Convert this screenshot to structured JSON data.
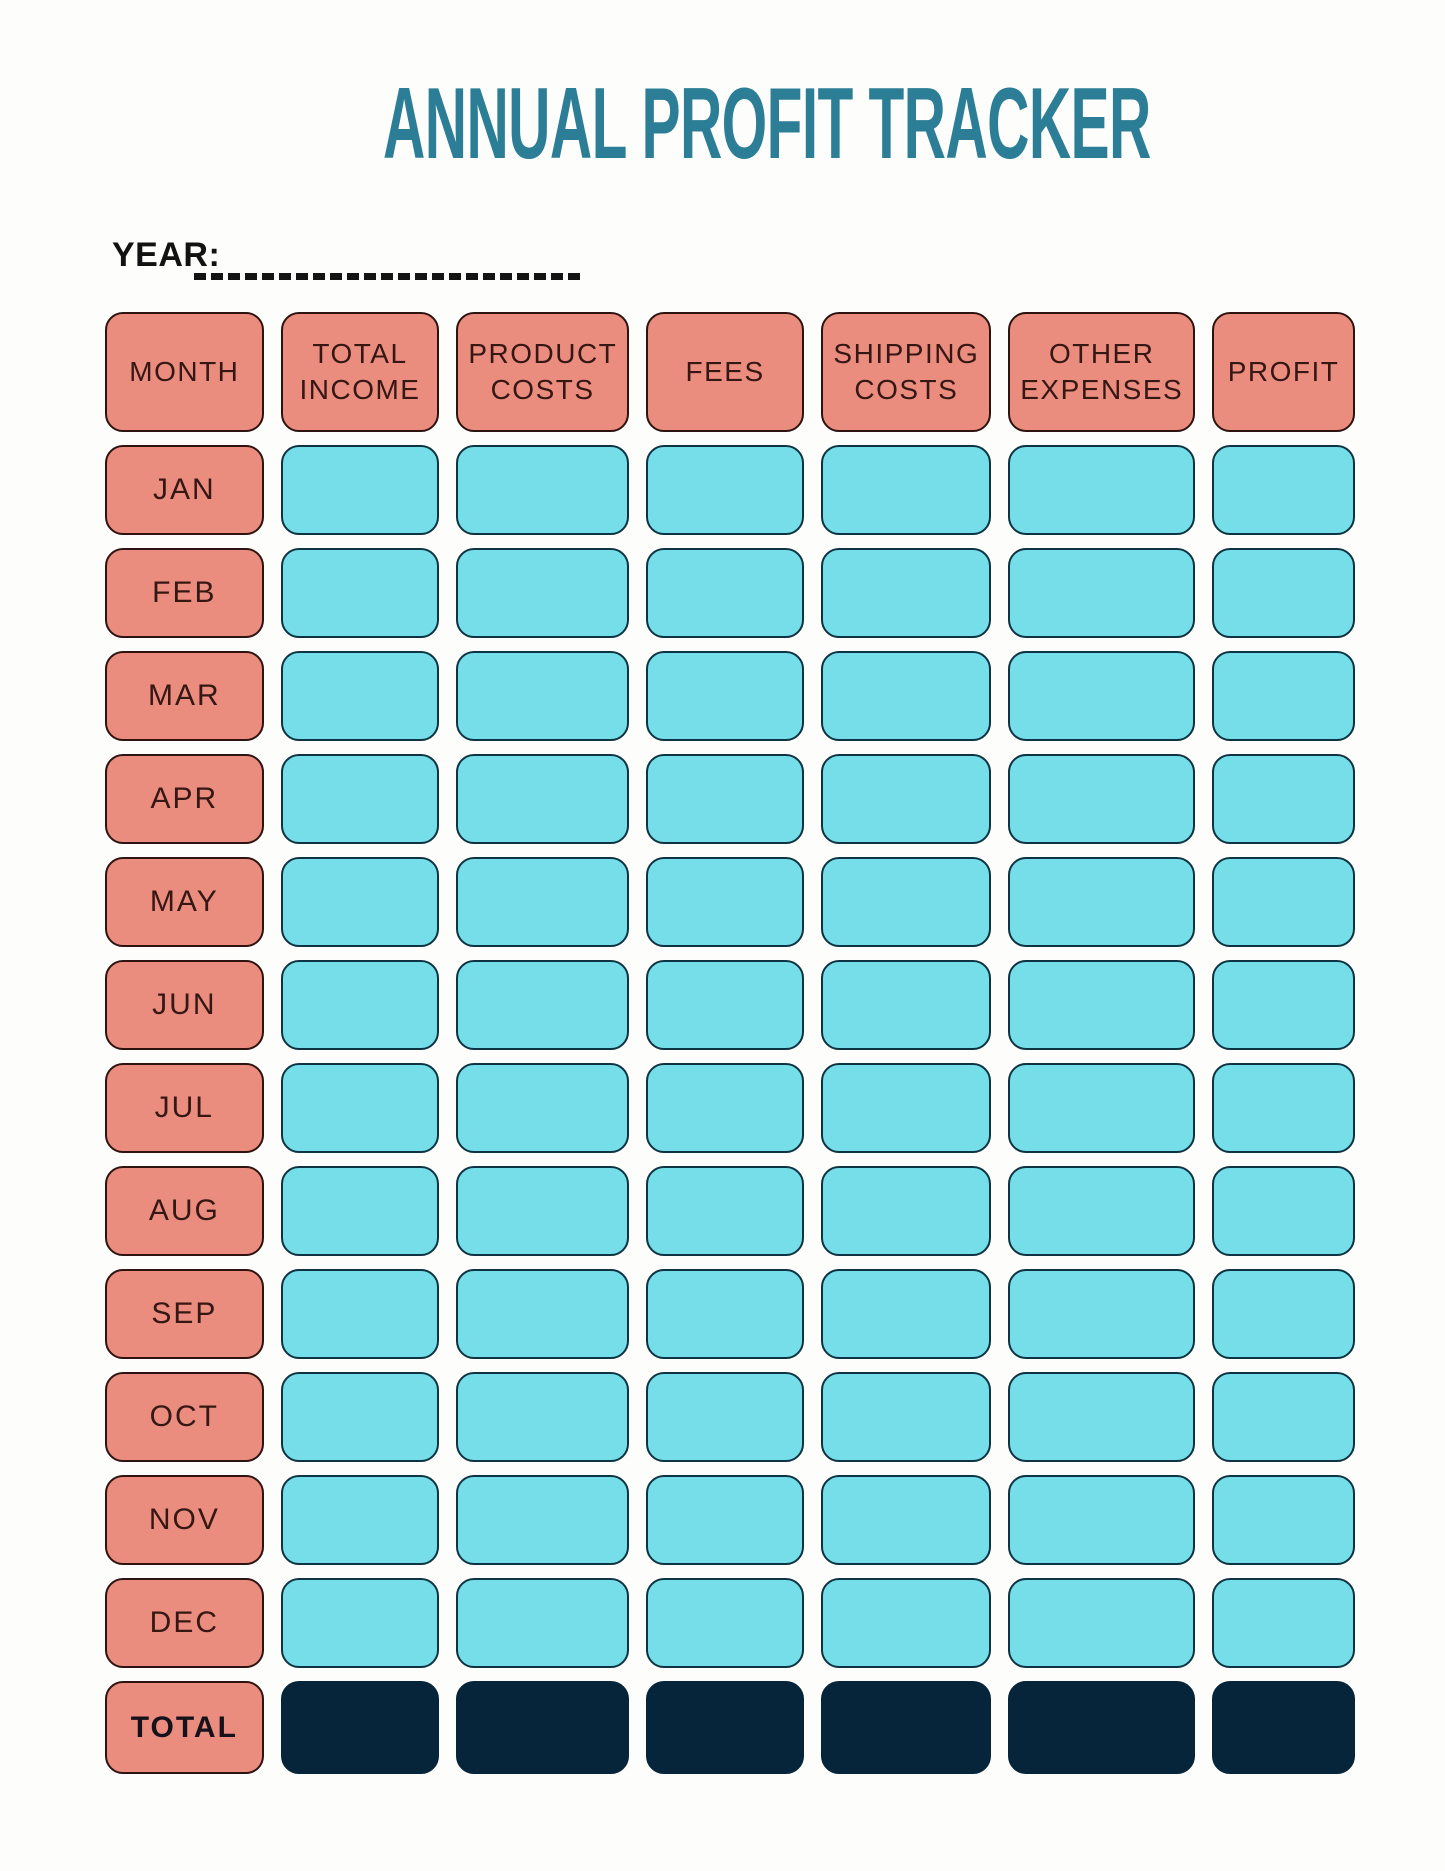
{
  "title": "ANNUAL PROFIT TRACKER",
  "year": {
    "label": "YEAR:",
    "value": ""
  },
  "table": {
    "headers": [
      "MONTH",
      "TOTAL INCOME",
      "PRODUCT COSTS",
      "FEES",
      "SHIPPING COSTS",
      "OTHER EXPENSES",
      "PROFIT"
    ],
    "months": [
      "JAN",
      "FEB",
      "MAR",
      "APR",
      "MAY",
      "JUN",
      "JUL",
      "AUG",
      "SEP",
      "OCT",
      "NOV",
      "DEC"
    ],
    "total_label": "TOTAL",
    "cell_values": "",
    "data_columns": 6
  },
  "colors": {
    "teal": "#2c7e96",
    "salmon": "#ea8c7e",
    "salmon_border": "#2e1310",
    "cyan": "#75dee8",
    "cyan_border": "#0e3443",
    "navy": "#07253a",
    "text_dark": "#351714",
    "black": "#141414",
    "background": "#fdfdfc"
  }
}
